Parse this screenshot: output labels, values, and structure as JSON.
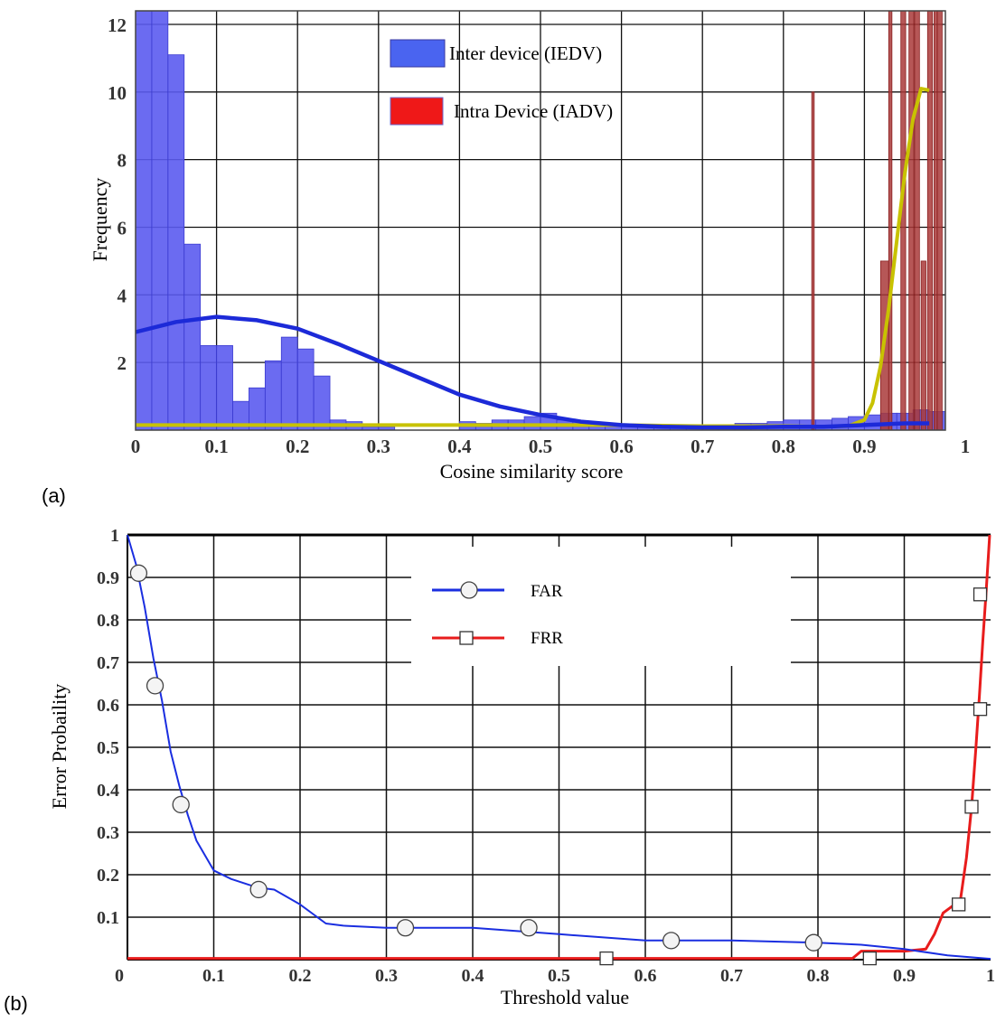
{
  "panel_labels": {
    "a": "(a)",
    "b": "(b)"
  },
  "colors": {
    "inter_bar": "#5b5bef",
    "inter_bar_edge": "#3a3ad0",
    "intra_bar": "#a93a3a",
    "intra_bar_edge": "#8a2020",
    "inter_fit": "#1c2ad8",
    "intra_fit": "#c8c200",
    "legend_inter": "#4a64f0",
    "legend_intra": "#ef1818",
    "far_line": "#1a2ee0",
    "frr_line": "#e81c1c",
    "marker_fill": "#f4f4f4"
  },
  "chart_data": [
    {
      "id": "a",
      "type": "bar",
      "title": "",
      "xlabel": "Cosine similarity score",
      "ylabel": "Frequency",
      "xlim": [
        0,
        1
      ],
      "ylim": [
        0,
        12.4
      ],
      "xticks": [
        0,
        0.1,
        0.2,
        0.3,
        0.4,
        0.5,
        0.6,
        0.7,
        0.8,
        0.9,
        1
      ],
      "xtick_labels": [
        "0",
        "0.1",
        "0.2",
        "0.3",
        "0.4",
        "0.5",
        "0.6",
        "0.7",
        "0.8",
        "0.9",
        "1"
      ],
      "yticks": [
        2,
        4,
        6,
        8,
        10,
        12
      ],
      "ytick_labels": [
        "2",
        "4",
        "6",
        "8",
        "10",
        "12"
      ],
      "grid": true,
      "legend": {
        "position": "top-center",
        "entries": [
          {
            "label": "Inter device (IEDV)",
            "color": "#4a64f0"
          },
          {
            "label": "Intra Device (IADV)",
            "color": "#ef1818"
          }
        ]
      },
      "bin_width": 0.02,
      "series": [
        {
          "name": "Inter device (IEDV)",
          "kind": "histogram",
          "bins_start": [
            0.0,
            0.02,
            0.04,
            0.06,
            0.08,
            0.1,
            0.12,
            0.14,
            0.16,
            0.18,
            0.2,
            0.22,
            0.24,
            0.26,
            0.28,
            0.3,
            0.4,
            0.42,
            0.44,
            0.46,
            0.48,
            0.5,
            0.52,
            0.54,
            0.56,
            0.58,
            0.6,
            0.62,
            0.64,
            0.66,
            0.68,
            0.7,
            0.72,
            0.74,
            0.76,
            0.78,
            0.8,
            0.82,
            0.84,
            0.86,
            0.88,
            0.9,
            0.92,
            0.94,
            0.96,
            0.98
          ],
          "values": [
            12.5,
            12.5,
            11.1,
            5.5,
            2.5,
            2.5,
            0.85,
            1.25,
            2.05,
            2.75,
            2.4,
            1.6,
            0.3,
            0.25,
            0.1,
            0.1,
            0.25,
            0.2,
            0.3,
            0.3,
            0.4,
            0.5,
            0.3,
            0.25,
            0.2,
            0.15,
            0.15,
            0.1,
            0.1,
            0.1,
            0.1,
            0.1,
            0.15,
            0.2,
            0.2,
            0.25,
            0.3,
            0.3,
            0.3,
            0.35,
            0.4,
            0.45,
            0.5,
            0.5,
            0.6,
            0.55
          ]
        },
        {
          "name": "Intra Device (IADV)",
          "kind": "histogram",
          "bins_start": [
            0.835,
            0.92,
            0.93,
            0.945,
            0.955,
            0.962,
            0.97,
            0.978,
            0.986,
            0.99
          ],
          "widths": [
            0.003,
            0.01,
            0.004,
            0.006,
            0.006,
            0.006,
            0.006,
            0.006,
            0.004,
            0.006
          ],
          "values": [
            10,
            5,
            12.5,
            12.5,
            12.5,
            12.5,
            5,
            12.5,
            12.5,
            12.5
          ]
        },
        {
          "name": "Inter fit",
          "kind": "curve",
          "x": [
            0,
            0.05,
            0.1,
            0.15,
            0.2,
            0.25,
            0.3,
            0.35,
            0.4,
            0.45,
            0.5,
            0.55,
            0.6,
            0.65,
            0.7,
            0.75,
            0.8,
            0.85,
            0.9,
            0.95,
            0.98
          ],
          "y": [
            2.9,
            3.2,
            3.35,
            3.25,
            3.0,
            2.55,
            2.05,
            1.55,
            1.05,
            0.7,
            0.45,
            0.25,
            0.15,
            0.1,
            0.08,
            0.08,
            0.1,
            0.1,
            0.15,
            0.2,
            0.2
          ]
        },
        {
          "name": "Intra fit",
          "kind": "curve",
          "x": [
            0,
            0.1,
            0.2,
            0.3,
            0.4,
            0.5,
            0.6,
            0.7,
            0.8,
            0.85,
            0.88,
            0.9,
            0.91,
            0.92,
            0.93,
            0.94,
            0.95,
            0.96,
            0.97,
            0.98
          ],
          "y": [
            0.15,
            0.15,
            0.15,
            0.15,
            0.15,
            0.15,
            0.15,
            0.12,
            0.12,
            0.1,
            0.12,
            0.3,
            0.8,
            1.9,
            3.6,
            5.6,
            7.6,
            9.2,
            10.1,
            10.05
          ]
        }
      ]
    },
    {
      "id": "b",
      "type": "line",
      "title": "",
      "xlabel": "Threshold value",
      "ylabel": "Error Probaility",
      "xlim": [
        0,
        1
      ],
      "ylim": [
        0,
        1
      ],
      "xticks": [
        0,
        0.1,
        0.2,
        0.3,
        0.4,
        0.5,
        0.6,
        0.7,
        0.8,
        0.9,
        1
      ],
      "xtick_labels": [
        "0",
        "0.1",
        "0.2",
        "0.3",
        "0.4",
        "0.5",
        "0.6",
        "0.7",
        "0.8",
        "0.9",
        "1"
      ],
      "yticks": [
        0.1,
        0.2,
        0.3,
        0.4,
        0.5,
        0.6,
        0.7,
        0.8,
        0.9,
        1
      ],
      "ytick_labels": [
        "0.1",
        "0.2",
        "0.3",
        "0.4",
        "0.5",
        "0.6",
        "0.7",
        "0.8",
        "0.9",
        "1"
      ],
      "grid": true,
      "legend": {
        "position": "top-center",
        "entries": [
          {
            "label": "FAR",
            "marker": "circle",
            "color": "#1a2ee0"
          },
          {
            "label": "FRR",
            "marker": "square",
            "color": "#e81c1c"
          }
        ]
      },
      "series": [
        {
          "name": "FAR",
          "marker": "circle",
          "x": [
            0,
            0.01,
            0.02,
            0.03,
            0.04,
            0.05,
            0.06,
            0.07,
            0.08,
            0.1,
            0.12,
            0.15,
            0.17,
            0.2,
            0.22,
            0.23,
            0.25,
            0.3,
            0.4,
            0.5,
            0.6,
            0.7,
            0.8,
            0.85,
            0.9,
            0.95,
            1.0
          ],
          "y": [
            1.0,
            0.93,
            0.83,
            0.71,
            0.61,
            0.49,
            0.41,
            0.34,
            0.28,
            0.21,
            0.19,
            0.17,
            0.165,
            0.13,
            0.1,
            0.085,
            0.08,
            0.075,
            0.075,
            0.06,
            0.045,
            0.045,
            0.04,
            0.035,
            0.025,
            0.01,
            0.002
          ],
          "markers_x": [
            0.013,
            0.032,
            0.062,
            0.152,
            0.322,
            0.465,
            0.63,
            0.795
          ],
          "markers_y": [
            0.91,
            0.645,
            0.365,
            0.165,
            0.075,
            0.075,
            0.045,
            0.04
          ]
        },
        {
          "name": "FRR",
          "marker": "square",
          "x": [
            0,
            0.1,
            0.2,
            0.3,
            0.4,
            0.5,
            0.6,
            0.7,
            0.8,
            0.84,
            0.85,
            0.9,
            0.925,
            0.935,
            0.945,
            0.955,
            0.965,
            0.972,
            0.978,
            0.983,
            0.987,
            0.991,
            0.995,
            0.999
          ],
          "y": [
            0.003,
            0.003,
            0.003,
            0.003,
            0.003,
            0.003,
            0.003,
            0.003,
            0.003,
            0.003,
            0.02,
            0.02,
            0.025,
            0.06,
            0.11,
            0.125,
            0.14,
            0.24,
            0.36,
            0.5,
            0.62,
            0.75,
            0.87,
            1.0
          ],
          "markers_x": [
            0.555,
            0.86,
            0.963,
            0.978,
            0.988,
            0.988
          ],
          "markers_y": [
            0.003,
            0.003,
            0.13,
            0.36,
            0.59,
            0.86
          ]
        }
      ]
    }
  ]
}
